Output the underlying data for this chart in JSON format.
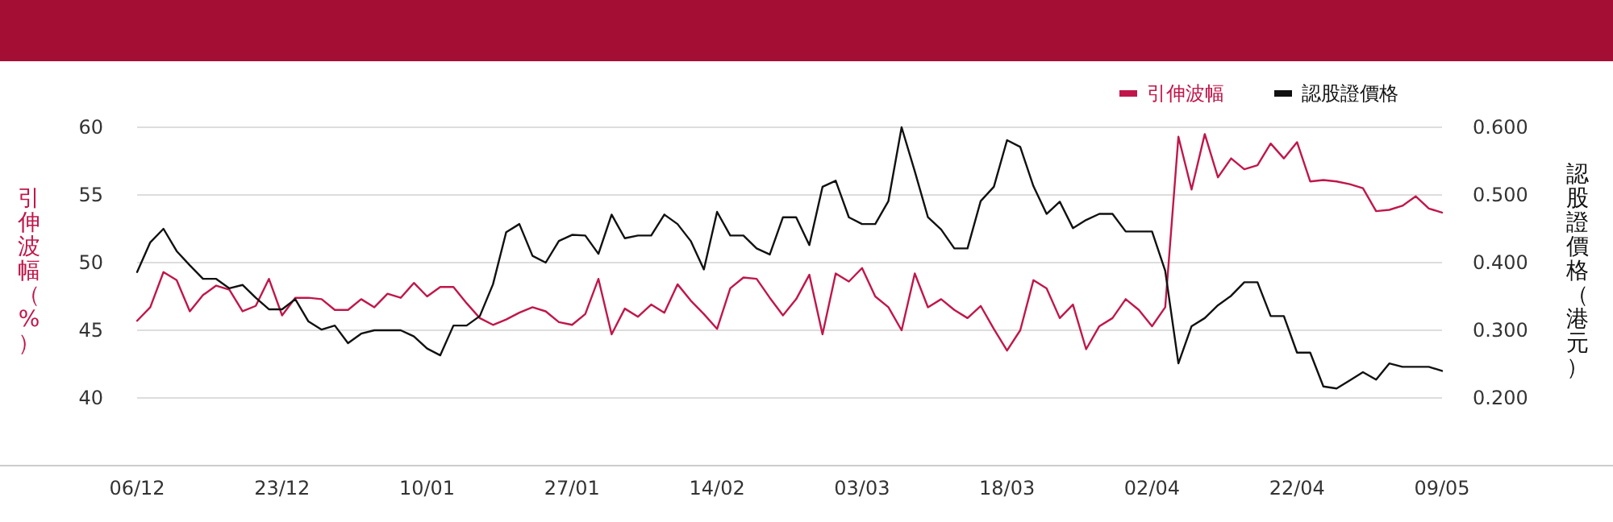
{
  "chart_data": {
    "type": "line",
    "categories": [
      "06/12",
      null,
      null,
      null,
      null,
      null,
      null,
      null,
      null,
      null,
      null,
      "23/12",
      null,
      null,
      null,
      null,
      null,
      null,
      null,
      null,
      null,
      null,
      "10/01",
      null,
      null,
      null,
      null,
      null,
      null,
      null,
      null,
      null,
      null,
      "27/01",
      null,
      null,
      null,
      null,
      null,
      null,
      null,
      null,
      null,
      null,
      "14/02",
      null,
      null,
      null,
      null,
      null,
      null,
      null,
      null,
      null,
      null,
      "03/03",
      null,
      null,
      null,
      null,
      null,
      null,
      null,
      null,
      null,
      null,
      "18/03",
      null,
      null,
      null,
      null,
      null,
      null,
      null,
      null,
      null,
      null,
      "02/04",
      null,
      null,
      null,
      null,
      null,
      null,
      null,
      null,
      null,
      null,
      "22/04",
      null,
      null,
      null,
      null,
      null,
      null,
      null,
      null,
      null,
      null,
      "09/05"
    ],
    "series": [
      {
        "name": "引伸波幅",
        "color": "#c0174a",
        "values": [
          45.7,
          46.7,
          49.3,
          48.7,
          46.4,
          47.6,
          48.3,
          48.0,
          46.4,
          46.8,
          48.8,
          46.1,
          47.4,
          47.4,
          47.3,
          46.5,
          46.5,
          47.3,
          46.7,
          47.7,
          47.4,
          48.5,
          47.5,
          48.2,
          48.2,
          47.0,
          45.9,
          45.4,
          45.8,
          46.3,
          46.7,
          46.4,
          45.6,
          45.4,
          46.2,
          48.8,
          44.7,
          46.6,
          46.0,
          46.9,
          46.3,
          48.4,
          47.2,
          46.2,
          45.1,
          48.1,
          48.9,
          48.8,
          47.4,
          46.1,
          47.3,
          49.1,
          44.7,
          49.2,
          48.6,
          49.6,
          47.5,
          46.7,
          45.0,
          49.2,
          46.7,
          47.3,
          46.5,
          45.9,
          46.8,
          45.1,
          43.5,
          45.0,
          48.7,
          48.1,
          45.9,
          46.9,
          43.6,
          45.3,
          45.9,
          47.3,
          46.5,
          45.3,
          46.7,
          59.3,
          55.4,
          59.5,
          56.3,
          57.7,
          56.9,
          57.2,
          58.8,
          57.7,
          58.9,
          56.0,
          56.1,
          56.0,
          55.8,
          55.5,
          53.8,
          53.9,
          54.2,
          54.9,
          54.0,
          53.7
        ]
      },
      {
        "name": "認股證價格",
        "color": "#111111",
        "axis": "y2",
        "values": [
          0.386,
          0.43,
          0.45,
          0.417,
          0.396,
          0.376,
          0.376,
          0.362,
          0.367,
          0.348,
          0.331,
          0.331,
          0.346,
          0.313,
          0.301,
          0.307,
          0.281,
          0.295,
          0.3,
          0.3,
          0.3,
          0.291,
          0.273,
          0.263,
          0.307,
          0.307,
          0.321,
          0.368,
          0.445,
          0.457,
          0.41,
          0.4,
          0.432,
          0.441,
          0.44,
          0.413,
          0.471,
          0.436,
          0.44,
          0.44,
          0.471,
          0.457,
          0.432,
          0.39,
          0.475,
          0.44,
          0.44,
          0.421,
          0.412,
          0.467,
          0.467,
          0.426,
          0.512,
          0.521,
          0.467,
          0.457,
          0.457,
          0.491,
          0.6,
          0.535,
          0.467,
          0.449,
          0.421,
          0.421,
          0.491,
          0.512,
          0.581,
          0.571,
          0.513,
          0.472,
          0.49,
          0.451,
          0.463,
          0.472,
          0.472,
          0.446,
          0.446,
          0.446,
          0.388,
          0.251,
          0.306,
          0.318,
          0.337,
          0.351,
          0.371,
          0.371,
          0.321,
          0.321,
          0.267,
          0.267,
          0.217,
          0.214,
          0.226,
          0.238,
          0.227,
          0.251,
          0.246,
          0.246,
          0.246,
          0.24
        ]
      }
    ],
    "ylabel": "引伸波幅（%）",
    "y2label": "認股證價格（港元）",
    "ylim": [
      35,
      60
    ],
    "yticks": [
      40,
      45,
      50,
      55,
      60
    ],
    "y2lim": [
      0.1,
      0.6
    ],
    "y2ticks": [
      {
        "value": 0.2,
        "label": "0.200"
      },
      {
        "value": 0.3,
        "label": "0.300"
      },
      {
        "value": 0.4,
        "label": "0.400"
      },
      {
        "value": 0.5,
        "label": "0.500"
      },
      {
        "value": 0.6,
        "label": "0.600"
      }
    ],
    "grid": "y",
    "legend": "top right"
  }
}
